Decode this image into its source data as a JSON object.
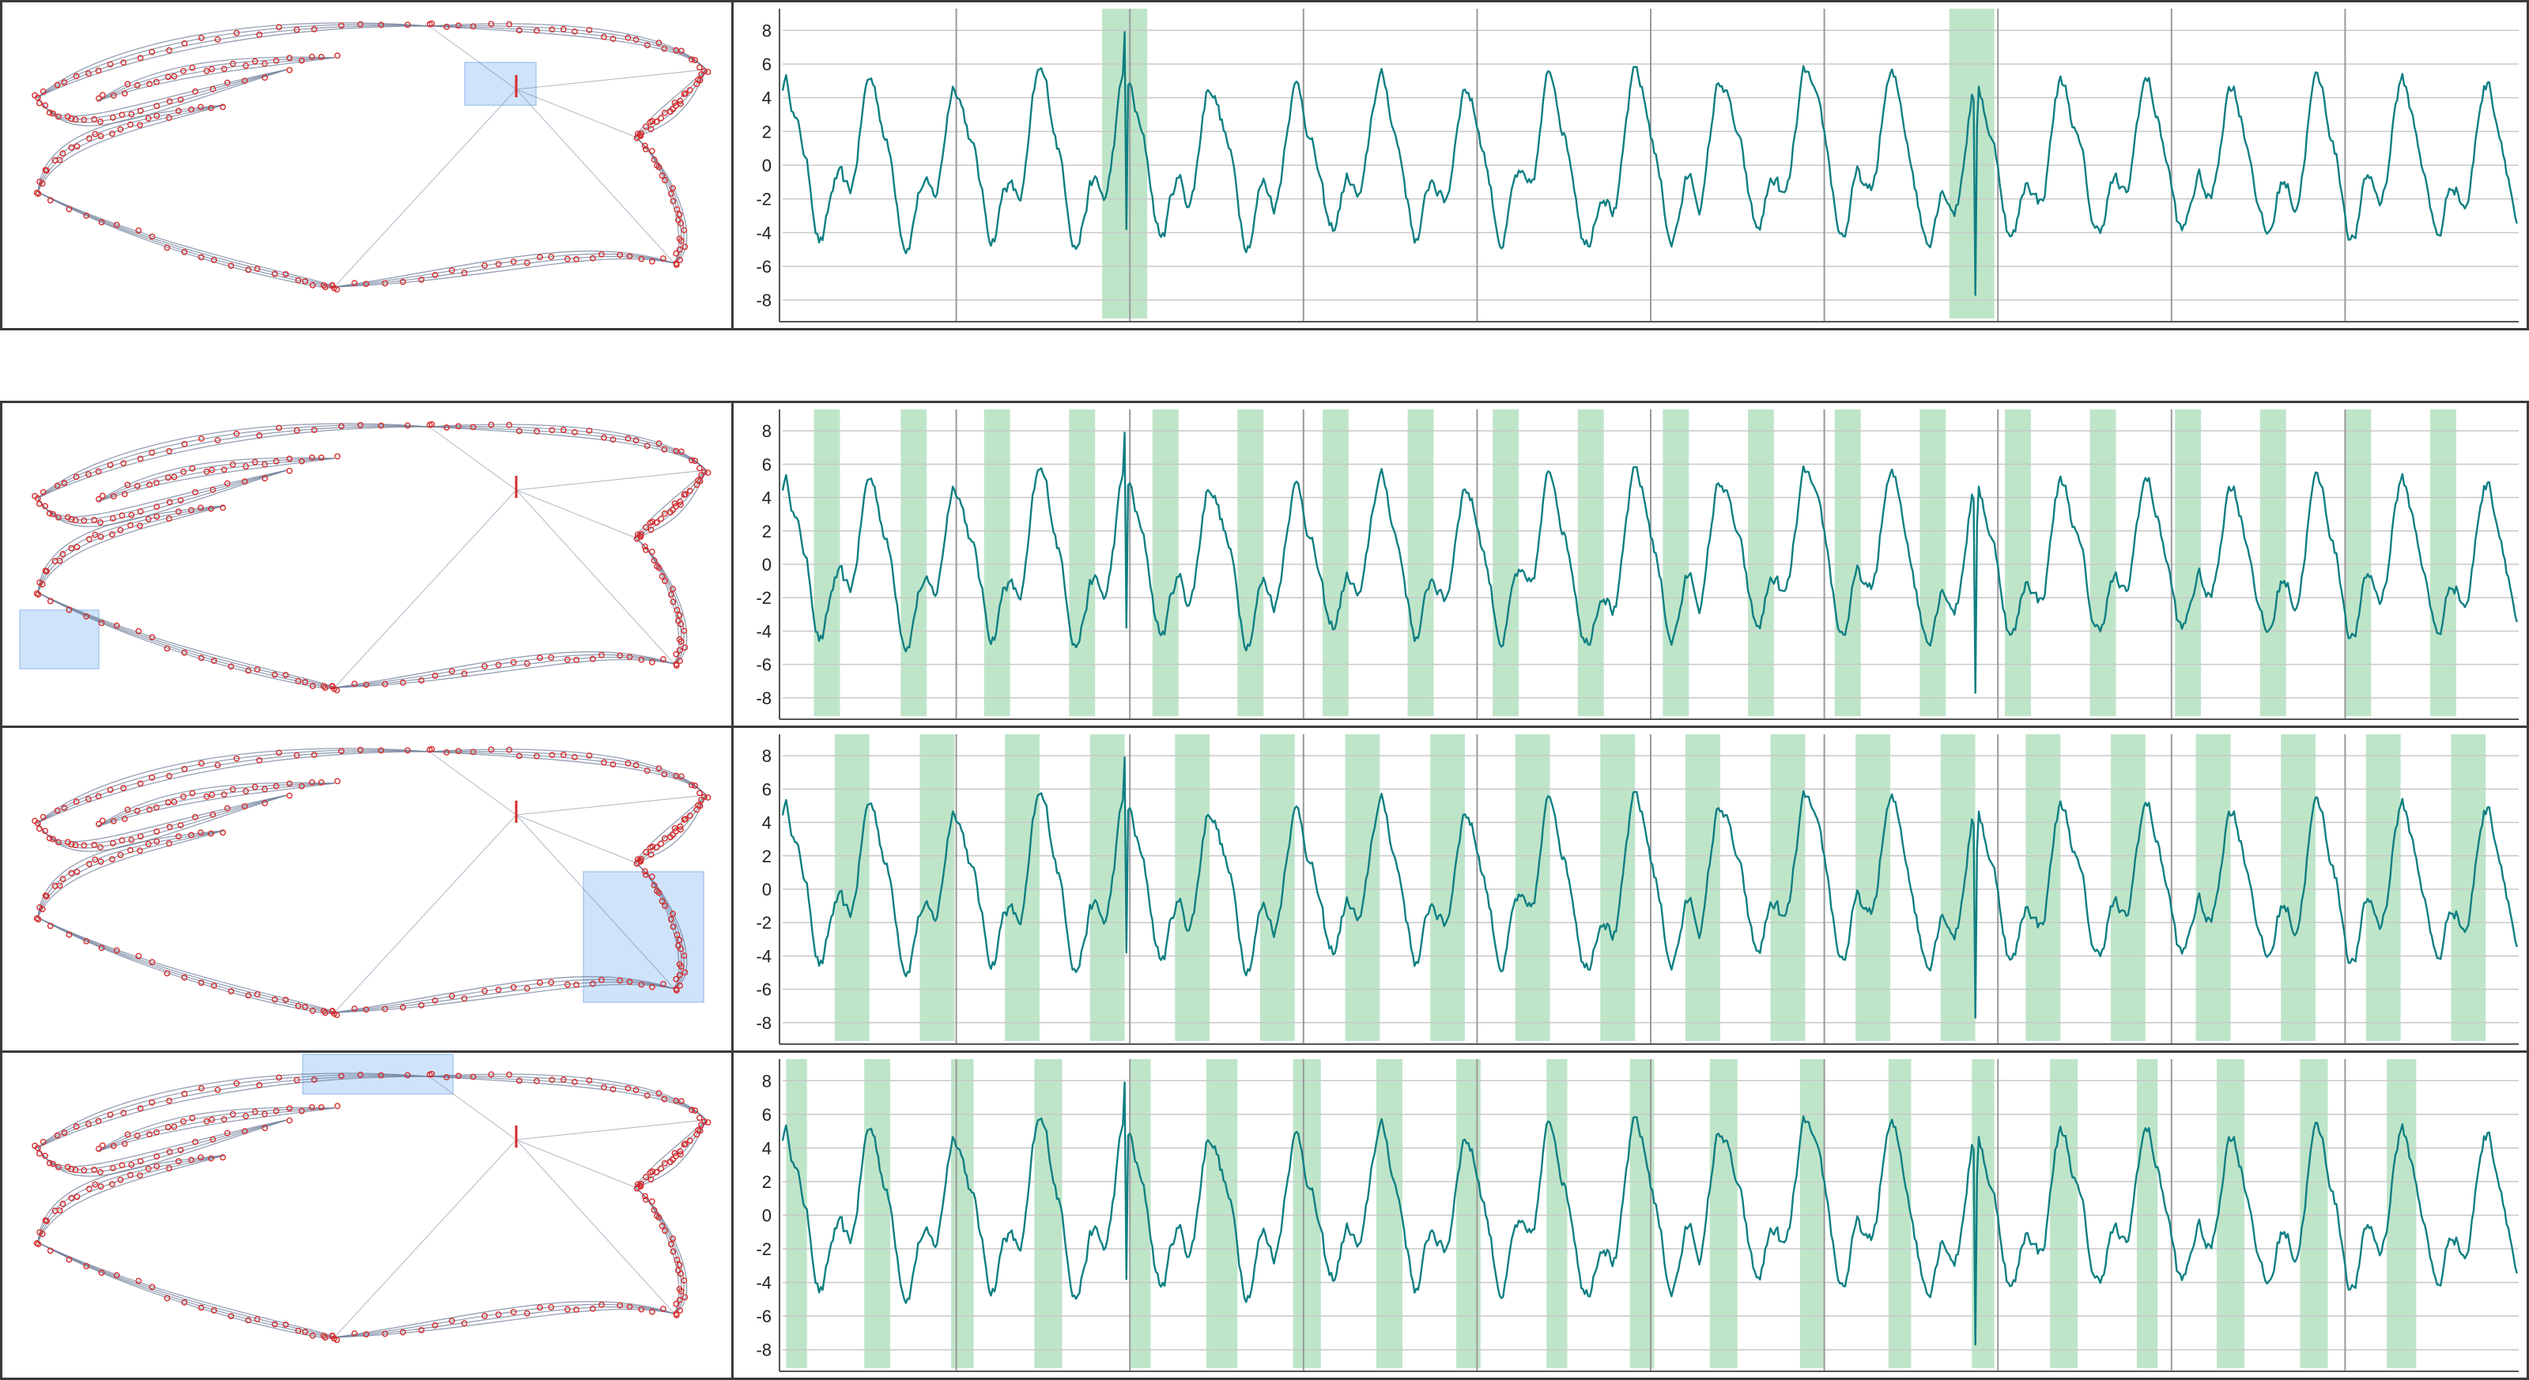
{
  "colors": {
    "series": "#0f7f82",
    "highlight_band": "#bfe5c9",
    "graph_node": "#d62b2b",
    "graph_edge": "#6f7f99",
    "selection_box": "#cfe3fb",
    "gridline": "#c8c8c8",
    "divider": "#9a9a9a",
    "frame_border": "#3a3a3a"
  },
  "chart_data": [
    {
      "type": "line",
      "panel": 1,
      "ylim": [
        -9,
        9
      ],
      "yticks": [
        -8,
        -6,
        -4,
        -2,
        0,
        2,
        4,
        6,
        8
      ],
      "grid": true,
      "x_range": [
        0,
        1000
      ],
      "highlight_spans": [
        [
          184,
          210
        ],
        [
          672,
          698
        ]
      ],
      "spikes": [
        {
          "x": 197,
          "peak": 7.9,
          "trough": -3.8
        },
        {
          "x": 686,
          "peak": 3.9,
          "trough": -7.7
        }
      ],
      "graph_selection": "mid-upper-right"
    },
    {
      "type": "line",
      "panel": 2,
      "ylim": [
        -9,
        9
      ],
      "yticks": [
        -8,
        -6,
        -4,
        -2,
        0,
        2,
        4,
        6,
        8
      ],
      "grid": true,
      "x_range": [
        0,
        1000
      ],
      "highlight_spans": [
        [
          18,
          33
        ],
        [
          68,
          83
        ],
        [
          116,
          131
        ],
        [
          165,
          180
        ],
        [
          213,
          228
        ],
        [
          262,
          277
        ],
        [
          311,
          326
        ],
        [
          360,
          375
        ],
        [
          409,
          424
        ],
        [
          458,
          473
        ],
        [
          507,
          522
        ],
        [
          556,
          571
        ],
        [
          606,
          621
        ],
        [
          655,
          670
        ],
        [
          704,
          719
        ],
        [
          753,
          768
        ],
        [
          802,
          817
        ],
        [
          851,
          866
        ],
        [
          900,
          915
        ],
        [
          949,
          964
        ]
      ],
      "graph_selection": "left-lower"
    },
    {
      "type": "line",
      "panel": 3,
      "ylim": [
        -9,
        9
      ],
      "yticks": [
        -8,
        -6,
        -4,
        -2,
        0,
        2,
        4,
        6,
        8
      ],
      "grid": true,
      "x_range": [
        0,
        1000
      ],
      "highlight_spans": [
        [
          30,
          50
        ],
        [
          79,
          99
        ],
        [
          128,
          148
        ],
        [
          177,
          197
        ],
        [
          226,
          246
        ],
        [
          275,
          295
        ],
        [
          324,
          344
        ],
        [
          373,
          393
        ],
        [
          422,
          442
        ],
        [
          471,
          491
        ],
        [
          520,
          540
        ],
        [
          569,
          589
        ],
        [
          618,
          638
        ],
        [
          667,
          687
        ],
        [
          716,
          736
        ],
        [
          765,
          785
        ],
        [
          814,
          834
        ],
        [
          863,
          883
        ],
        [
          912,
          932
        ],
        [
          961,
          981
        ]
      ],
      "graph_selection": "right-lower"
    },
    {
      "type": "line",
      "panel": 4,
      "ylim": [
        -9,
        9
      ],
      "yticks": [
        -8,
        -6,
        -4,
        -2,
        0,
        2,
        4,
        6,
        8
      ],
      "grid": true,
      "x_range": [
        0,
        1000
      ],
      "highlight_spans": [
        [
          2,
          14
        ],
        [
          47,
          62
        ],
        [
          97,
          110
        ],
        [
          145,
          161
        ],
        [
          200,
          212
        ],
        [
          244,
          262
        ],
        [
          294,
          310
        ],
        [
          342,
          357
        ],
        [
          388,
          402
        ],
        [
          440,
          452
        ],
        [
          488,
          502
        ],
        [
          534,
          550
        ],
        [
          586,
          600
        ],
        [
          637,
          650
        ],
        [
          685,
          698
        ],
        [
          730,
          746
        ],
        [
          780,
          792
        ],
        [
          826,
          842
        ],
        [
          874,
          890
        ],
        [
          924,
          941
        ]
      ],
      "graph_selection": "top-center"
    }
  ]
}
